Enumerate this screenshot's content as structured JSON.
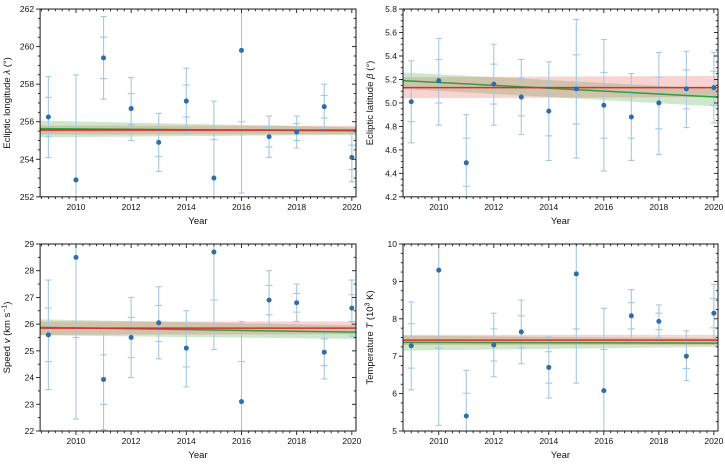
{
  "page": {
    "background": "#ffffff"
  },
  "colors": {
    "marker": "#2e6da8",
    "errorbar": "#a5c8e4",
    "red_line": "#d62f2c",
    "red_band": "rgba(222,80,75,0.25)",
    "green_line": "#339c3d",
    "green_band": "rgba(90,180,90,0.30)",
    "frame": "#1a1a1a",
    "tick": "#1a1a1a",
    "label": "#111111"
  },
  "chart_data": [
    {
      "type": "scatter",
      "name": "ecliptic-longitude",
      "xlabel": "Year",
      "ylabel_parts": [
        {
          "t": "Ecliptic longitude "
        },
        {
          "t": "λ",
          "italic": true
        },
        {
          "t": " (°)"
        }
      ],
      "xlim": [
        2008.7,
        2020.15
      ],
      "ylim": [
        252,
        262
      ],
      "xticks": [
        2010,
        2012,
        2014,
        2016,
        2018,
        2020
      ],
      "x_minor_step": 0.25,
      "yticks": [
        252,
        254,
        256,
        258,
        260,
        262
      ],
      "y_minor_step": 0.5,
      "ytick_decimals": 0,
      "points": [
        {
          "x": 2009,
          "y": 256.25,
          "inner": [
            255.2,
            257.3
          ],
          "outer": [
            254.1,
            258.4
          ]
        },
        {
          "x": 2010,
          "y": 252.9,
          "inner": [
            250.1,
            255.7
          ],
          "outer": [
            247.3,
            258.5
          ]
        },
        {
          "x": 2011,
          "y": 259.4,
          "inner": [
            258.3,
            260.5
          ],
          "outer": [
            257.2,
            261.6
          ]
        },
        {
          "x": 2012,
          "y": 256.7,
          "inner": [
            255.85,
            257.5
          ],
          "outer": [
            255.0,
            258.35
          ]
        },
        {
          "x": 2013,
          "y": 254.9,
          "inner": [
            254.15,
            255.7
          ],
          "outer": [
            253.35,
            256.45
          ]
        },
        {
          "x": 2014,
          "y": 257.1,
          "inner": [
            256.25,
            257.95
          ],
          "outer": [
            255.35,
            258.85
          ]
        },
        {
          "x": 2015,
          "y": 253.0,
          "inner": [
            250.95,
            255.05
          ],
          "outer": [
            248.9,
            257.1
          ]
        },
        {
          "x": 2016,
          "y": 259.8,
          "inner": [
            256.0,
            263.6
          ],
          "outer": [
            252.2,
            267.4
          ]
        },
        {
          "x": 2017,
          "y": 255.2,
          "inner": [
            254.65,
            255.75
          ],
          "outer": [
            254.1,
            256.3
          ]
        },
        {
          "x": 2018,
          "y": 255.45,
          "inner": [
            255.0,
            255.9
          ],
          "outer": [
            254.6,
            256.3
          ]
        },
        {
          "x": 2019,
          "y": 256.8,
          "inner": [
            256.2,
            257.4
          ],
          "outer": [
            255.6,
            258.0
          ]
        },
        {
          "x": 2020,
          "y": 254.1,
          "inner": [
            253.45,
            254.75
          ],
          "outer": [
            252.8,
            255.4
          ]
        }
      ],
      "fits": {
        "green": {
          "line": [
            255.63,
            255.52
          ],
          "band_top": [
            256.06,
            255.7
          ],
          "band_bottom": [
            255.17,
            255.3
          ]
        },
        "red": {
          "line": [
            255.55,
            255.55
          ],
          "band_top": [
            255.8,
            255.78
          ],
          "band_bottom": [
            255.32,
            255.34
          ]
        }
      }
    },
    {
      "type": "scatter",
      "name": "ecliptic-latitude",
      "xlabel": "Year",
      "ylabel_parts": [
        {
          "t": "Ecliptic latitude "
        },
        {
          "t": "β",
          "italic": true
        },
        {
          "t": " (°)"
        }
      ],
      "xlim": [
        2008.7,
        2020.15
      ],
      "ylim": [
        4.2,
        5.8
      ],
      "xticks": [
        2010,
        2012,
        2014,
        2016,
        2018,
        2020
      ],
      "x_minor_step": 0.25,
      "yticks": [
        4.2,
        4.4,
        4.6,
        4.8,
        5.0,
        5.2,
        5.4,
        5.6,
        5.8
      ],
      "y_minor_step": 0.05,
      "ytick_decimals": 1,
      "points": [
        {
          "x": 2009,
          "y": 5.01,
          "inner": [
            4.84,
            5.19
          ],
          "outer": [
            4.66,
            5.36
          ]
        },
        {
          "x": 2010,
          "y": 5.19,
          "inner": [
            5.0,
            5.37
          ],
          "outer": [
            4.81,
            5.55
          ]
        },
        {
          "x": 2011,
          "y": 4.49,
          "inner": [
            4.29,
            4.7
          ],
          "outer": [
            4.08,
            4.9
          ]
        },
        {
          "x": 2012,
          "y": 5.16,
          "inner": [
            4.99,
            5.33
          ],
          "outer": [
            4.81,
            5.5
          ]
        },
        {
          "x": 2013,
          "y": 5.05,
          "inner": [
            4.89,
            5.21
          ],
          "outer": [
            4.73,
            5.37
          ]
        },
        {
          "x": 2014,
          "y": 4.93,
          "inner": [
            4.72,
            5.14
          ],
          "outer": [
            4.51,
            5.35
          ]
        },
        {
          "x": 2015,
          "y": 5.12,
          "inner": [
            4.82,
            5.41
          ],
          "outer": [
            4.53,
            5.71
          ]
        },
        {
          "x": 2016,
          "y": 4.98,
          "inner": [
            4.7,
            5.26
          ],
          "outer": [
            4.42,
            5.54
          ]
        },
        {
          "x": 2017,
          "y": 4.88,
          "inner": [
            4.7,
            5.07
          ],
          "outer": [
            4.51,
            5.25
          ]
        },
        {
          "x": 2018,
          "y": 5.0,
          "inner": [
            4.78,
            5.22
          ],
          "outer": [
            4.56,
            5.43
          ]
        },
        {
          "x": 2019,
          "y": 5.12,
          "inner": [
            4.95,
            5.28
          ],
          "outer": [
            4.79,
            5.44
          ]
        },
        {
          "x": 2020,
          "y": 5.13,
          "inner": [
            4.98,
            5.27
          ],
          "outer": [
            4.83,
            5.43
          ]
        }
      ],
      "fits": {
        "green": {
          "line": [
            5.19,
            5.05
          ],
          "band_top": [
            5.26,
            5.12
          ],
          "band_bottom": [
            5.12,
            4.97
          ]
        },
        "red": {
          "line": [
            5.13,
            5.13
          ],
          "band_top": [
            5.22,
            5.23
          ],
          "band_bottom": [
            5.04,
            5.05
          ]
        }
      }
    },
    {
      "type": "scatter",
      "name": "speed",
      "xlabel": "Year",
      "ylabel_parts": [
        {
          "t": "Speed "
        },
        {
          "t": "v",
          "italic": true
        },
        {
          "t": " (km s"
        },
        {
          "t": "−1",
          "sup": true
        },
        {
          "t": ")"
        }
      ],
      "xlim": [
        2008.7,
        2020.15
      ],
      "ylim": [
        22,
        29
      ],
      "xticks": [
        2010,
        2012,
        2014,
        2016,
        2018,
        2020
      ],
      "x_minor_step": 0.25,
      "yticks": [
        22,
        23,
        24,
        25,
        26,
        27,
        28,
        29
      ],
      "y_minor_step": 0.5,
      "ytick_decimals": 0,
      "points": [
        {
          "x": 2009,
          "y": 25.6,
          "inner": [
            24.6,
            26.6
          ],
          "outer": [
            23.55,
            27.65
          ]
        },
        {
          "x": 2010,
          "y": 28.5,
          "inner": [
            25.5,
            31.5
          ],
          "outer": [
            22.45,
            34.55
          ]
        },
        {
          "x": 2011,
          "y": 23.93,
          "inner": [
            23.0,
            24.85
          ],
          "outer": [
            22.05,
            25.82
          ]
        },
        {
          "x": 2012,
          "y": 25.5,
          "inner": [
            24.75,
            26.25
          ],
          "outer": [
            24.0,
            27.0
          ]
        },
        {
          "x": 2013,
          "y": 26.05,
          "inner": [
            25.35,
            26.7
          ],
          "outer": [
            24.7,
            27.4
          ]
        },
        {
          "x": 2014,
          "y": 25.1,
          "inner": [
            24.4,
            25.8
          ],
          "outer": [
            23.65,
            26.5
          ]
        },
        {
          "x": 2015,
          "y": 28.7,
          "inner": [
            26.9,
            30.5
          ],
          "outer": [
            25.05,
            32.35
          ]
        },
        {
          "x": 2016,
          "y": 23.1,
          "inner": [
            21.6,
            24.6
          ],
          "outer": [
            20.1,
            26.1
          ]
        },
        {
          "x": 2017,
          "y": 26.9,
          "inner": [
            26.35,
            27.45
          ],
          "outer": [
            25.8,
            28.0
          ]
        },
        {
          "x": 2018,
          "y": 26.8,
          "inner": [
            26.45,
            27.15
          ],
          "outer": [
            26.1,
            27.5
          ]
        },
        {
          "x": 2019,
          "y": 24.95,
          "inner": [
            24.45,
            25.45
          ],
          "outer": [
            23.95,
            25.95
          ]
        },
        {
          "x": 2020,
          "y": 26.6,
          "inner": [
            26.1,
            27.1
          ],
          "outer": [
            25.55,
            27.65
          ]
        }
      ],
      "fits": {
        "green": {
          "line": [
            25.88,
            25.7
          ],
          "band_top": [
            26.18,
            25.95
          ],
          "band_bottom": [
            25.58,
            25.45
          ]
        },
        "red": {
          "line": [
            25.85,
            25.85
          ],
          "band_top": [
            26.1,
            26.1
          ],
          "band_bottom": [
            25.6,
            25.62
          ]
        }
      }
    },
    {
      "type": "scatter",
      "name": "temperature",
      "xlabel": "Year",
      "ylabel_parts": [
        {
          "t": "Temperature "
        },
        {
          "t": "T",
          "italic": true
        },
        {
          "t": " (10"
        },
        {
          "t": "3",
          "sup": true
        },
        {
          "t": " K)"
        }
      ],
      "xlim": [
        2008.7,
        2020.15
      ],
      "ylim": [
        5,
        10
      ],
      "xticks": [
        2010,
        2012,
        2014,
        2016,
        2018,
        2020
      ],
      "x_minor_step": 0.25,
      "yticks": [
        5,
        6,
        7,
        8,
        9,
        10
      ],
      "y_minor_step": 0.25,
      "ytick_decimals": 0,
      "points": [
        {
          "x": 2009,
          "y": 7.28,
          "inner": [
            6.68,
            7.87
          ],
          "outer": [
            6.1,
            8.45
          ]
        },
        {
          "x": 2010,
          "y": 9.3,
          "inner": [
            7.22,
            11.38
          ],
          "outer": [
            5.15,
            13.45
          ]
        },
        {
          "x": 2011,
          "y": 5.4,
          "inner": [
            4.79,
            6.01
          ],
          "outer": [
            4.18,
            6.62
          ]
        },
        {
          "x": 2012,
          "y": 7.3,
          "inner": [
            6.87,
            7.73
          ],
          "outer": [
            6.45,
            8.15
          ]
        },
        {
          "x": 2013,
          "y": 7.65,
          "inner": [
            7.22,
            8.08
          ],
          "outer": [
            6.8,
            8.5
          ]
        },
        {
          "x": 2014,
          "y": 6.7,
          "inner": [
            6.28,
            7.12
          ],
          "outer": [
            5.88,
            7.52
          ]
        },
        {
          "x": 2015,
          "y": 9.2,
          "inner": [
            7.73,
            10.67
          ],
          "outer": [
            6.28,
            12.12
          ]
        },
        {
          "x": 2016,
          "y": 6.08,
          "inner": [
            4.98,
            7.18
          ],
          "outer": [
            3.88,
            8.28
          ]
        },
        {
          "x": 2017,
          "y": 8.08,
          "inner": [
            7.73,
            8.43
          ],
          "outer": [
            7.38,
            8.78
          ]
        },
        {
          "x": 2018,
          "y": 7.93,
          "inner": [
            7.71,
            8.15
          ],
          "outer": [
            7.49,
            8.37
          ]
        },
        {
          "x": 2019,
          "y": 7.0,
          "inner": [
            6.67,
            7.34
          ],
          "outer": [
            6.35,
            7.68
          ]
        },
        {
          "x": 2020,
          "y": 8.15,
          "inner": [
            7.76,
            8.54
          ],
          "outer": [
            7.38,
            8.92
          ]
        }
      ],
      "fits": {
        "green": {
          "line": [
            7.37,
            7.35
          ],
          "band_top": [
            7.55,
            7.48
          ],
          "band_bottom": [
            7.15,
            7.25
          ]
        },
        "red": {
          "line": [
            7.43,
            7.43
          ],
          "band_top": [
            7.57,
            7.57
          ],
          "band_bottom": [
            7.3,
            7.3
          ]
        }
      }
    }
  ]
}
